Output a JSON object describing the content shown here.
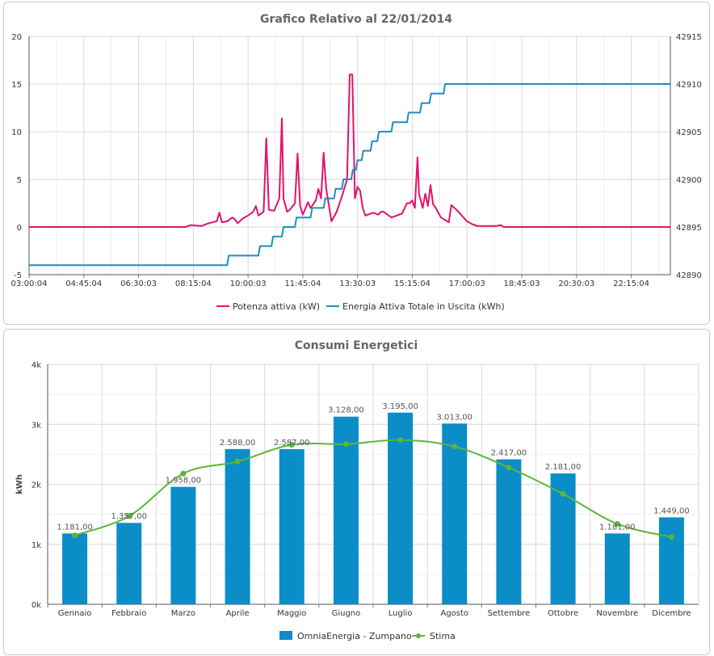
{
  "chart_data": [
    {
      "type": "line",
      "title": "Grafico Relativo al 22/01/2014",
      "x_ticks": [
        "03:00:04",
        "04:45:04",
        "06:30:03",
        "08:15:04",
        "10:00:03",
        "11:45:04",
        "13:30:03",
        "15:15:04",
        "17:00:03",
        "18:45:03",
        "20:30:03",
        "22:15:04"
      ],
      "x_range": [
        "03:00:04",
        "23:30:04"
      ],
      "y_left": {
        "range": [
          -5,
          20
        ],
        "ticks": [
          -5,
          0,
          5,
          10,
          15,
          20
        ]
      },
      "y_right": {
        "range": [
          42890,
          42915
        ],
        "ticks": [
          42890,
          42895,
          42900,
          42905,
          42910,
          42915
        ]
      },
      "grid": true,
      "legend": "bottom",
      "series": [
        {
          "name": "Potenza attiva (kW)",
          "color": "#e3126a",
          "axis": "left",
          "points": [
            [
              "03:00",
              0
            ],
            [
              "08:00",
              0
            ],
            [
              "08:10",
              0.2
            ],
            [
              "08:30",
              0.1
            ],
            [
              "08:45",
              0.4
            ],
            [
              "09:00",
              0.6
            ],
            [
              "09:05",
              1.5
            ],
            [
              "09:10",
              0.5
            ],
            [
              "09:20",
              0.6
            ],
            [
              "09:30",
              1.0
            ],
            [
              "09:35",
              0.8
            ],
            [
              "09:40",
              0.4
            ],
            [
              "09:50",
              0.9
            ],
            [
              "10:00",
              1.2
            ],
            [
              "10:10",
              1.6
            ],
            [
              "10:15",
              2.2
            ],
            [
              "10:20",
              1.2
            ],
            [
              "10:30",
              1.6
            ],
            [
              "10:35",
              9.3
            ],
            [
              "10:40",
              1.8
            ],
            [
              "10:50",
              1.7
            ],
            [
              "11:00",
              3.0
            ],
            [
              "11:05",
              11.4
            ],
            [
              "11:08",
              3.0
            ],
            [
              "11:15",
              1.6
            ],
            [
              "11:20",
              1.8
            ],
            [
              "11:30",
              2.5
            ],
            [
              "11:35",
              7.7
            ],
            [
              "11:40",
              2.2
            ],
            [
              "11:45",
              1.3
            ],
            [
              "11:55",
              2.6
            ],
            [
              "12:00",
              2.0
            ],
            [
              "12:05",
              2.4
            ],
            [
              "12:10",
              2.8
            ],
            [
              "12:15",
              4.0
            ],
            [
              "12:20",
              3.0
            ],
            [
              "12:25",
              7.8
            ],
            [
              "12:30",
              4.0
            ],
            [
              "12:40",
              0.6
            ],
            [
              "12:50",
              1.6
            ],
            [
              "13:00",
              3.2
            ],
            [
              "13:10",
              5.0
            ],
            [
              "13:15",
              16.0
            ],
            [
              "13:20",
              16.0
            ],
            [
              "13:25",
              3.0
            ],
            [
              "13:30",
              4.2
            ],
            [
              "13:35",
              3.8
            ],
            [
              "13:40",
              2.0
            ],
            [
              "13:45",
              1.2
            ],
            [
              "13:55",
              1.4
            ],
            [
              "14:00",
              1.5
            ],
            [
              "14:10",
              1.3
            ],
            [
              "14:15",
              1.6
            ],
            [
              "14:20",
              1.6
            ],
            [
              "14:30",
              1.2
            ],
            [
              "14:35",
              1.0
            ],
            [
              "14:45",
              1.2
            ],
            [
              "14:55",
              1.4
            ],
            [
              "15:05",
              2.5
            ],
            [
              "15:10",
              2.5
            ],
            [
              "15:15",
              2.8
            ],
            [
              "15:20",
              2.0
            ],
            [
              "15:25",
              7.3
            ],
            [
              "15:28",
              3.5
            ],
            [
              "15:35",
              2.0
            ],
            [
              "15:40",
              3.5
            ],
            [
              "15:45",
              2.2
            ],
            [
              "15:50",
              4.4
            ],
            [
              "15:55",
              2.4
            ],
            [
              "16:00",
              2.0
            ],
            [
              "16:05",
              1.5
            ],
            [
              "16:10",
              1.0
            ],
            [
              "16:25",
              0.5
            ],
            [
              "16:30",
              2.3
            ],
            [
              "16:40",
              1.8
            ],
            [
              "16:50",
              1.2
            ],
            [
              "17:00",
              0.6
            ],
            [
              "17:10",
              0.3
            ],
            [
              "17:20",
              0.1
            ],
            [
              "17:40",
              0.1
            ],
            [
              "17:55",
              0.1
            ],
            [
              "18:05",
              0.2
            ],
            [
              "18:10",
              0
            ],
            [
              "23:30",
              0
            ]
          ]
        },
        {
          "name": "Energia Attiva Totale in Uscita (kWh)",
          "color": "#1d8ec2",
          "axis": "right",
          "points": [
            [
              "03:00",
              42891
            ],
            [
              "09:20",
              42891
            ],
            [
              "09:23",
              42892
            ],
            [
              "10:20",
              42892
            ],
            [
              "10:23",
              42893
            ],
            [
              "10:45",
              42893
            ],
            [
              "10:48",
              42894
            ],
            [
              "11:05",
              42894
            ],
            [
              "11:08",
              42895
            ],
            [
              "11:30",
              42895
            ],
            [
              "11:33",
              42896
            ],
            [
              "12:00",
              42896
            ],
            [
              "12:03",
              42897
            ],
            [
              "12:25",
              42897
            ],
            [
              "12:28",
              42898
            ],
            [
              "12:45",
              42898
            ],
            [
              "12:48",
              42899
            ],
            [
              "13:00",
              42899
            ],
            [
              "13:03",
              42900
            ],
            [
              "13:18",
              42900
            ],
            [
              "13:21",
              42901
            ],
            [
              "13:27",
              42901
            ],
            [
              "13:30",
              42902
            ],
            [
              "13:38",
              42902
            ],
            [
              "13:41",
              42903
            ],
            [
              "13:55",
              42903
            ],
            [
              "13:58",
              42904
            ],
            [
              "14:08",
              42904
            ],
            [
              "14:11",
              42905
            ],
            [
              "14:35",
              42905
            ],
            [
              "14:38",
              42906
            ],
            [
              "15:05",
              42906
            ],
            [
              "15:08",
              42907
            ],
            [
              "15:30",
              42907
            ],
            [
              "15:33",
              42908
            ],
            [
              "15:48",
              42908
            ],
            [
              "15:51",
              42909
            ],
            [
              "16:15",
              42909
            ],
            [
              "16:18",
              42910
            ],
            [
              "23:30",
              42910
            ]
          ]
        }
      ]
    },
    {
      "type": "bar",
      "title": "Consumi Energetici",
      "ylabel": "kWh",
      "ylim": [
        0,
        4000
      ],
      "y_ticks": [
        "0k",
        "1k",
        "2k",
        "3k",
        "4k"
      ],
      "categories": [
        "Gennaio",
        "Febbraio",
        "Marzo",
        "Aprile",
        "Maggio",
        "Giugno",
        "Luglio",
        "Agosto",
        "Settembre",
        "Ottobre",
        "Novembre",
        "Dicembre"
      ],
      "grid": true,
      "legend": "bottom",
      "series": [
        {
          "name": "OmniaEnergia - Zumpano",
          "type": "bar",
          "color": "#0b8dc8",
          "values": [
            1181,
            1357,
            1958,
            2588,
            2587,
            3128,
            3195,
            3013,
            2417,
            2181,
            1181,
            1449
          ],
          "labels": [
            "1.181,00",
            "1.357,00",
            "1.958,00",
            "2.588,00",
            "2.587,00",
            "3.128,00",
            "3.195,00",
            "3.013,00",
            "2.417,00",
            "2.181,00",
            "1.181,00",
            "1.449,00"
          ]
        },
        {
          "name": "Stima",
          "type": "line",
          "color": "#5db53a",
          "values": [
            1150,
            1470,
            2180,
            2380,
            2660,
            2670,
            2740,
            2630,
            2280,
            1840,
            1340,
            1120
          ]
        }
      ]
    }
  ]
}
